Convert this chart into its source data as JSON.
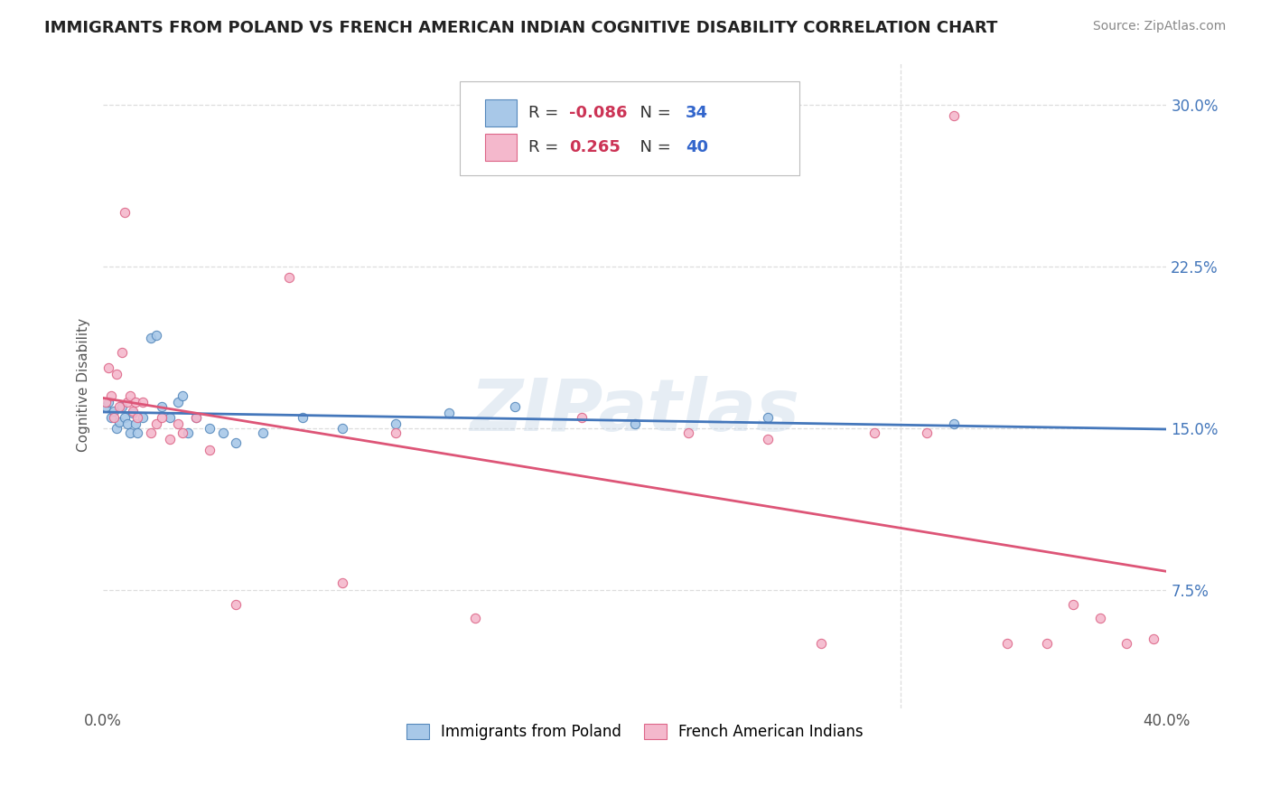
{
  "title": "IMMIGRANTS FROM POLAND VS FRENCH AMERICAN INDIAN COGNITIVE DISABILITY CORRELATION CHART",
  "source": "Source: ZipAtlas.com",
  "ylabel": "Cognitive Disability",
  "xlim": [
    0.0,
    0.4
  ],
  "ylim": [
    0.02,
    0.32
  ],
  "yticks": [
    0.075,
    0.15,
    0.225,
    0.3
  ],
  "ytick_labels": [
    "7.5%",
    "15.0%",
    "22.5%",
    "30.0%"
  ],
  "xticks": [
    0.0,
    0.1,
    0.2,
    0.3,
    0.4
  ],
  "xtick_labels": [
    "0.0%",
    "",
    "",
    "",
    "40.0%"
  ],
  "background_color": "#ffffff",
  "grid_color": "#dddddd",
  "blue_color": "#a8c8e8",
  "pink_color": "#f4b8cc",
  "blue_edge_color": "#5588bb",
  "pink_edge_color": "#dd6688",
  "blue_line_color": "#4477bb",
  "pink_line_color": "#dd5577",
  "watermark": "ZIPatlas",
  "legend_R1": "-0.086",
  "legend_N1": "34",
  "legend_R2": "0.265",
  "legend_N2": "40",
  "label1": "Immigrants from Poland",
  "label2": "French American Indians",
  "blue_x": [
    0.001,
    0.002,
    0.003,
    0.004,
    0.005,
    0.006,
    0.007,
    0.008,
    0.009,
    0.01,
    0.011,
    0.012,
    0.013,
    0.015,
    0.018,
    0.02,
    0.022,
    0.025,
    0.028,
    0.03,
    0.032,
    0.035,
    0.04,
    0.045,
    0.05,
    0.06,
    0.075,
    0.09,
    0.11,
    0.13,
    0.155,
    0.2,
    0.25,
    0.32
  ],
  "blue_y": [
    0.16,
    0.162,
    0.155,
    0.158,
    0.15,
    0.153,
    0.16,
    0.155,
    0.152,
    0.148,
    0.157,
    0.152,
    0.148,
    0.155,
    0.192,
    0.193,
    0.16,
    0.155,
    0.162,
    0.165,
    0.148,
    0.155,
    0.15,
    0.148,
    0.143,
    0.148,
    0.155,
    0.15,
    0.152,
    0.157,
    0.16,
    0.152,
    0.155,
    0.152
  ],
  "pink_x": [
    0.001,
    0.002,
    0.003,
    0.004,
    0.005,
    0.006,
    0.007,
    0.008,
    0.009,
    0.01,
    0.011,
    0.012,
    0.013,
    0.015,
    0.018,
    0.02,
    0.022,
    0.025,
    0.028,
    0.03,
    0.035,
    0.04,
    0.05,
    0.07,
    0.09,
    0.11,
    0.14,
    0.18,
    0.22,
    0.25,
    0.27,
    0.29,
    0.31,
    0.32,
    0.34,
    0.355,
    0.365,
    0.375,
    0.385,
    0.395
  ],
  "pink_y": [
    0.162,
    0.178,
    0.165,
    0.155,
    0.175,
    0.16,
    0.185,
    0.25,
    0.162,
    0.165,
    0.158,
    0.162,
    0.155,
    0.162,
    0.148,
    0.152,
    0.155,
    0.145,
    0.152,
    0.148,
    0.155,
    0.14,
    0.068,
    0.22,
    0.078,
    0.148,
    0.062,
    0.155,
    0.148,
    0.145,
    0.05,
    0.148,
    0.148,
    0.295,
    0.05,
    0.05,
    0.068,
    0.062,
    0.05,
    0.052
  ]
}
